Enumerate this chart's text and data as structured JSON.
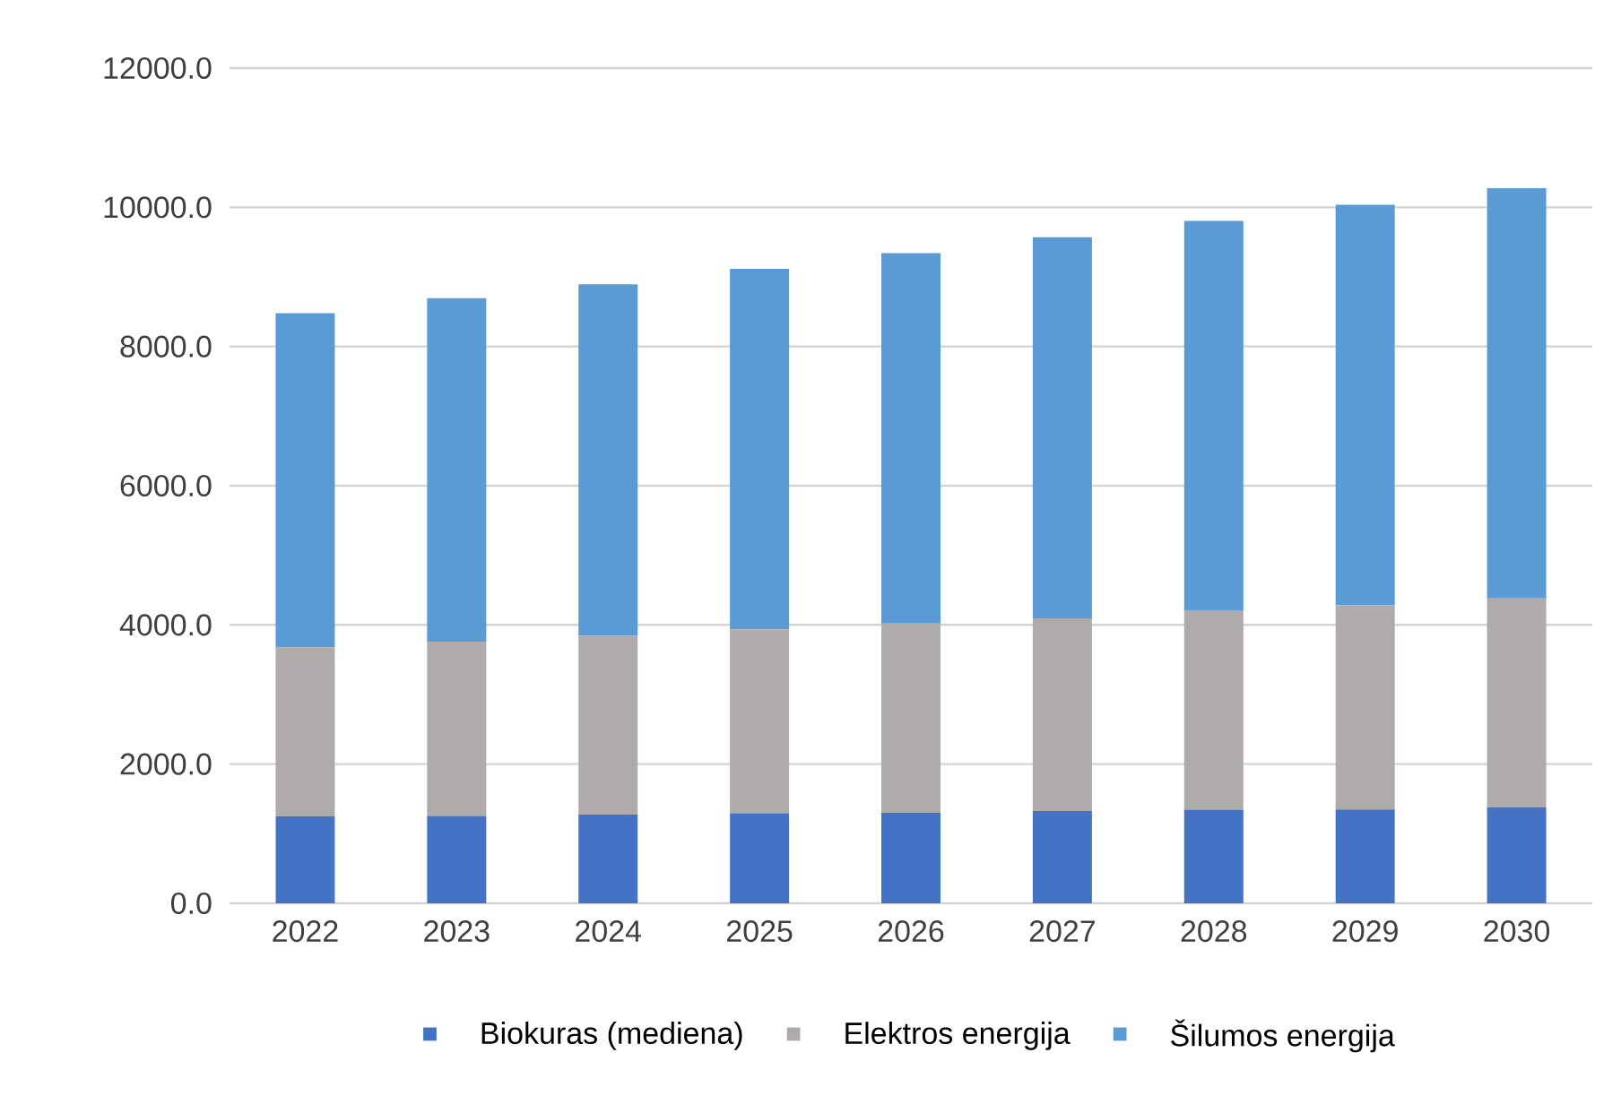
{
  "chart_data": {
    "type": "bar",
    "stacked": true,
    "categories": [
      "2022",
      "2023",
      "2024",
      "2025",
      "2026",
      "2027",
      "2028",
      "2029",
      "2030"
    ],
    "series": [
      {
        "name": "Biokuras (mediena)",
        "color": "#4472c4",
        "values": [
          1250,
          1255,
          1275,
          1295,
          1300,
          1325,
          1345,
          1350,
          1380
        ]
      },
      {
        "name": "Elektros energija",
        "color": "#afabab",
        "values": [
          2430,
          2505,
          2570,
          2640,
          2720,
          2770,
          2855,
          2930,
          3000
        ]
      },
      {
        "name": "Šilumos energija",
        "color": "#5b9bd5",
        "values": [
          4800,
          4935,
          5050,
          5180,
          5320,
          5475,
          5605,
          5755,
          5895
        ]
      }
    ],
    "ylim": [
      0,
      12000
    ],
    "yticks": [
      {
        "value": 0,
        "label": "0.0"
      },
      {
        "value": 2000,
        "label": "2000.0"
      },
      {
        "value": 4000,
        "label": "4000.0"
      },
      {
        "value": 6000,
        "label": "6000.0"
      },
      {
        "value": 8000,
        "label": "8000.0"
      },
      {
        "value": 10000,
        "label": "10000.0"
      },
      {
        "value": 12000,
        "label": "12000.0"
      }
    ],
    "grid": "y",
    "legend": "bottom"
  }
}
